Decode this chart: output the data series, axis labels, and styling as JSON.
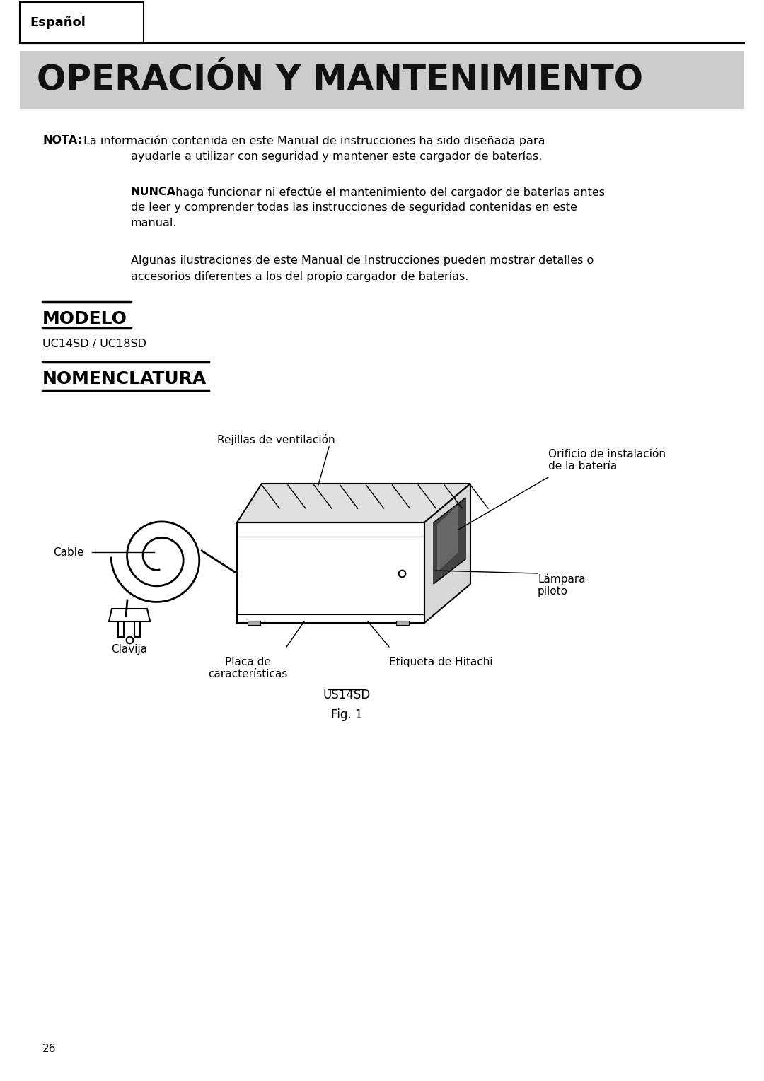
{
  "page_bg": "#ffffff",
  "tab_label": "Español",
  "tab_bg": "#ffffff",
  "tab_border": "#000000",
  "header_bg": "#cccccc",
  "header_text": "OPERACIÓN Y MANTENIMIENTO",
  "header_text_color": "#111111",
  "nota_bold": "NOTA:",
  "nunca_bold": "NUNCA",
  "modelo_label": "MODELO",
  "modelo_value": "UC14SD / UC18SD",
  "nomenclatura_label": "NOMENCLATURA",
  "label_rejillas": "Rejillas de ventilación",
  "label_orificio": "Orificio de instalación\nde la batería",
  "label_cable": "Cable",
  "label_lampara": "Lámpara\npiloto",
  "label_clavija": "Clavija",
  "label_placa": "Placa de\ncaracterísticas",
  "label_etiqueta": "Etiqueta de Hitachi",
  "fig_model": "US14SD",
  "fig_label": "Fig. 1",
  "page_number": "26",
  "font_color": "#000000"
}
